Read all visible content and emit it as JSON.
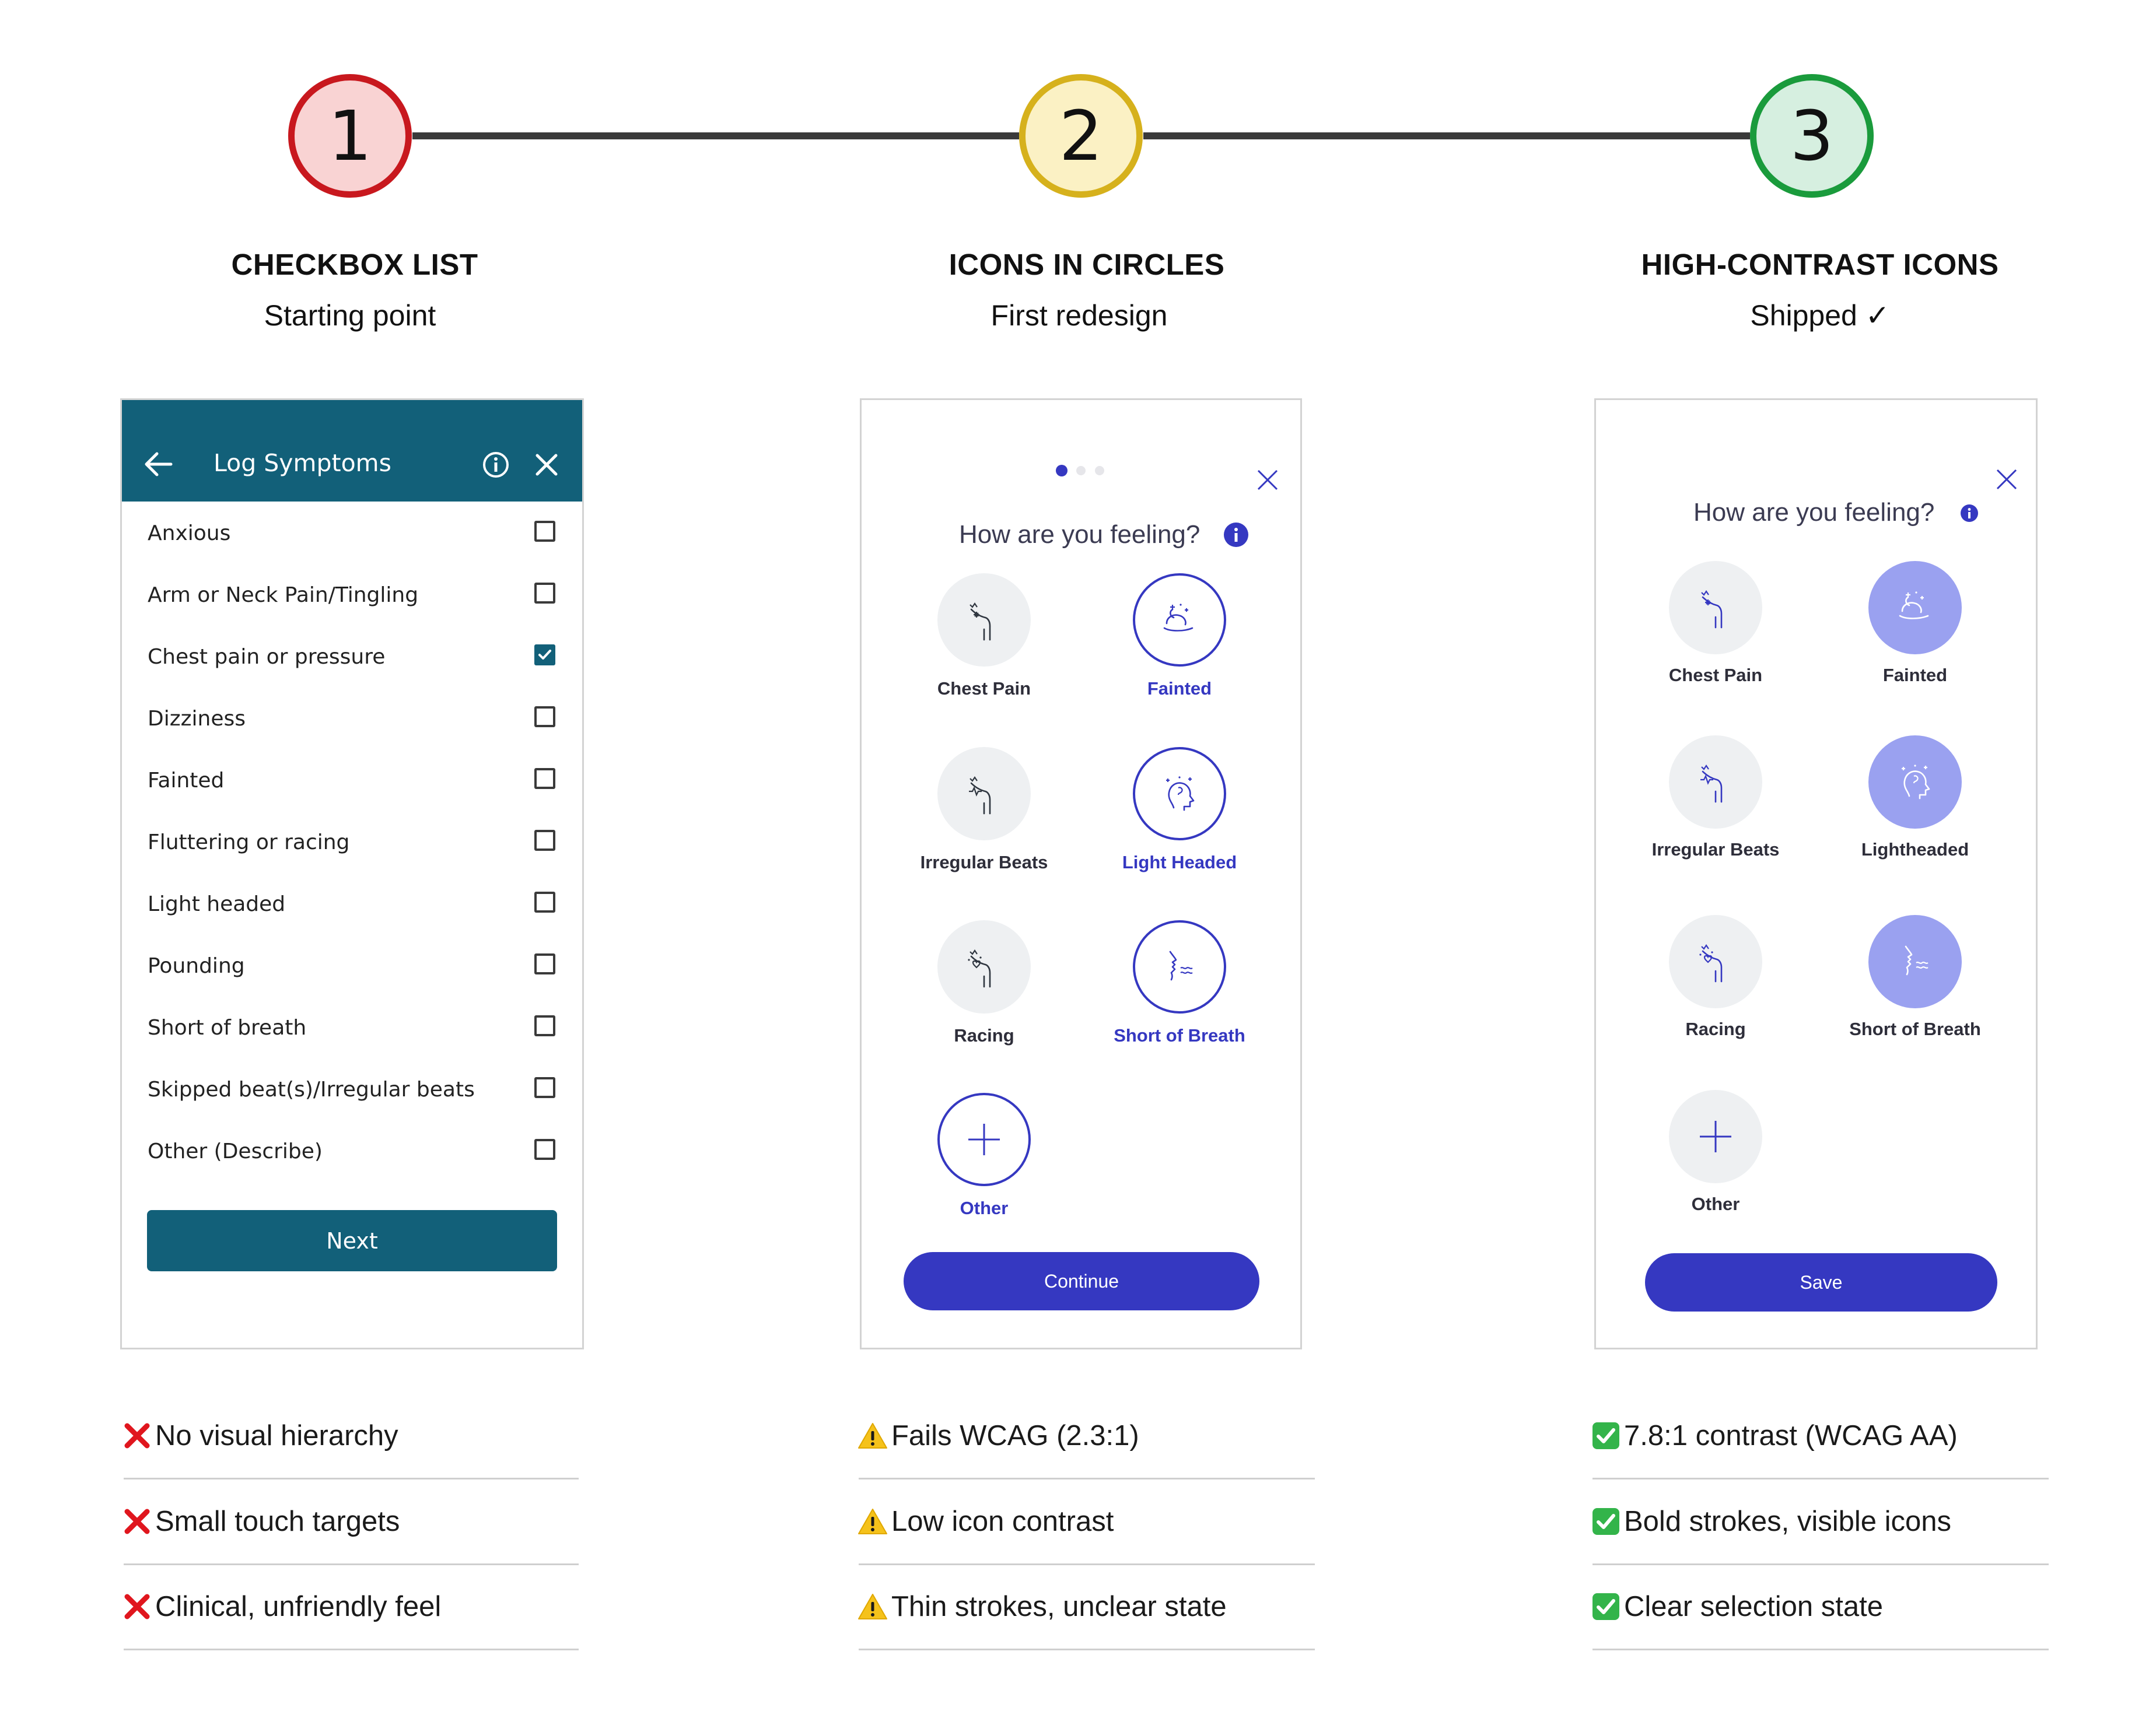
{
  "steps": [
    {
      "number": "1",
      "title": "CHECKBOX LIST",
      "subtitle": "Starting point",
      "color": "#c8181e",
      "fill": "#f9d3d3"
    },
    {
      "number": "2",
      "title": "ICONS IN CIRCLES",
      "subtitle": "First redesign",
      "color": "#d6b11c",
      "fill": "#fbf1c4"
    },
    {
      "number": "3",
      "title": "HIGH-CONTRAST ICONS",
      "subtitle": "Shipped ✓",
      "color": "#1a9b3c",
      "fill": "#d6efe0"
    }
  ],
  "panel1": {
    "header_title": "Log Symptoms",
    "items": [
      {
        "label": "Anxious",
        "checked": false
      },
      {
        "label": "Arm or Neck Pain/Tingling",
        "checked": false
      },
      {
        "label": "Chest pain or pressure",
        "checked": true
      },
      {
        "label": "Dizziness",
        "checked": false
      },
      {
        "label": "Fainted",
        "checked": false
      },
      {
        "label": "Fluttering or racing",
        "checked": false
      },
      {
        "label": "Light headed",
        "checked": false
      },
      {
        "label": "Pounding",
        "checked": false
      },
      {
        "label": "Short of breath",
        "checked": false
      },
      {
        "label": "Skipped beat(s)/Irregular beats",
        "checked": false
      },
      {
        "label": "Other (Describe)",
        "checked": false
      }
    ],
    "next_label": "Next",
    "accent": "#126079"
  },
  "panel2": {
    "question": "How are you feeling?",
    "symptoms": [
      {
        "label": "Chest Pain",
        "selected": false,
        "icon": "chest-pain-icon"
      },
      {
        "label": "Fainted",
        "selected": true,
        "icon": "fainted-icon"
      },
      {
        "label": "Irregular Beats",
        "selected": false,
        "icon": "irregular-beats-icon"
      },
      {
        "label": "Light Headed",
        "selected": true,
        "icon": "light-headed-icon"
      },
      {
        "label": "Racing",
        "selected": false,
        "icon": "racing-icon"
      },
      {
        "label": "Short of Breath",
        "selected": true,
        "icon": "short-of-breath-icon"
      },
      {
        "label": "Other",
        "selected": true,
        "icon": "plus-icon"
      }
    ],
    "cta_label": "Continue",
    "accent": "#3538c1"
  },
  "panel3": {
    "question": "How are you feeling?",
    "symptoms": [
      {
        "label": "Chest Pain",
        "selected": false,
        "icon": "chest-pain-icon"
      },
      {
        "label": "Fainted",
        "selected": true,
        "icon": "fainted-icon"
      },
      {
        "label": "Irregular Beats",
        "selected": false,
        "icon": "irregular-beats-icon"
      },
      {
        "label": "Lightheaded",
        "selected": true,
        "icon": "light-headed-icon"
      },
      {
        "label": "Racing",
        "selected": false,
        "icon": "racing-icon"
      },
      {
        "label": "Short of Breath",
        "selected": true,
        "icon": "short-of-breath-icon"
      },
      {
        "label": "Other",
        "selected": false,
        "icon": "plus-icon"
      }
    ],
    "cta_label": "Save",
    "accent": "#3538c1"
  },
  "notes": {
    "col1": [
      "No visual hierarchy",
      "Small touch targets",
      "Clinical, unfriendly feel"
    ],
    "col2": [
      "Fails WCAG (2.3:1)",
      "Low icon contrast",
      "Thin strokes, unclear state"
    ],
    "col3": [
      "7.8:1 contrast (WCAG AA)",
      "Bold strokes, visible icons",
      "Clear selection state"
    ]
  }
}
